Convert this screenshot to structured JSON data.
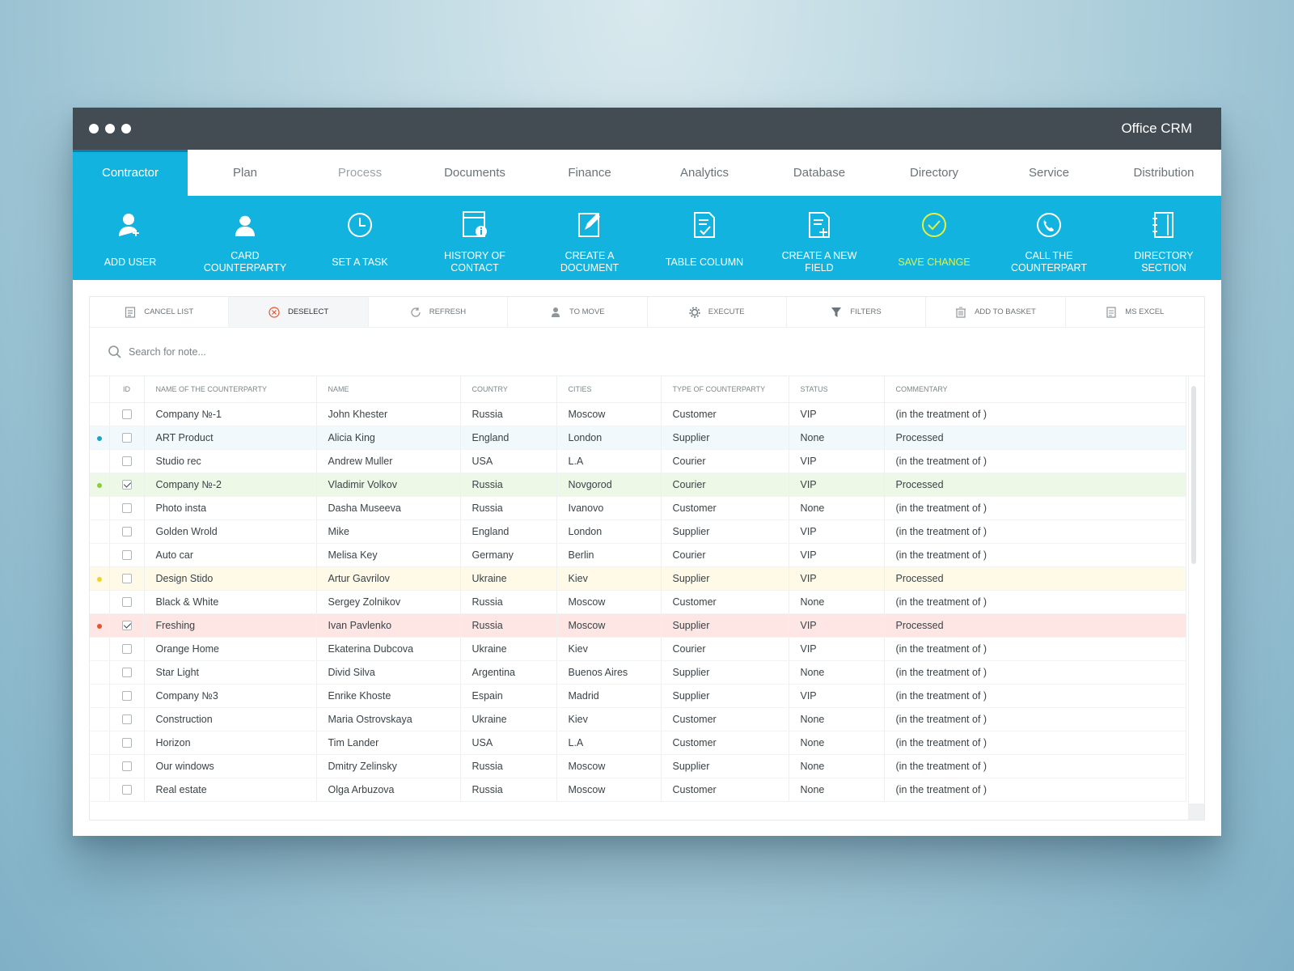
{
  "window": {
    "title": "Office CRM"
  },
  "tabs": [
    {
      "label": "Contractor",
      "state": "active"
    },
    {
      "label": "Plan",
      "state": "normal"
    },
    {
      "label": "Process",
      "state": "muted"
    },
    {
      "label": "Documents",
      "state": "normal"
    },
    {
      "label": "Finance",
      "state": "normal"
    },
    {
      "label": "Analytics",
      "state": "normal"
    },
    {
      "label": "Database",
      "state": "normal"
    },
    {
      "label": "Directory",
      "state": "normal"
    },
    {
      "label": "Service",
      "state": "normal"
    },
    {
      "label": "Distribution",
      "state": "normal"
    }
  ],
  "toolbar": [
    {
      "label": "ADD USER",
      "icon": "add-user-icon"
    },
    {
      "label": "CARD COUNTERPARTY",
      "icon": "card-counterparty-icon"
    },
    {
      "label": "SET A TASK",
      "icon": "clock-icon"
    },
    {
      "label": "HISTORY OF CONTACT",
      "icon": "history-icon"
    },
    {
      "label": "CREATE A DOCUMENT",
      "icon": "edit-document-icon"
    },
    {
      "label": "TABLE COLUMN",
      "icon": "table-column-icon"
    },
    {
      "label": "CREATE A NEW FIELD",
      "icon": "new-field-icon"
    },
    {
      "label": "SAVE CHANGE",
      "icon": "check-circle-icon",
      "accent": "#e5f23a"
    },
    {
      "label": "CALL THE COUNTERPART",
      "icon": "phone-icon"
    },
    {
      "label": "DIRECTORY SECTION",
      "icon": "notebook-icon"
    }
  ],
  "actions": [
    {
      "label": "CANCEL LIST",
      "icon": "list-icon"
    },
    {
      "label": "DESELECT",
      "icon": "close-circle-icon",
      "selected": true
    },
    {
      "label": "REFRESH",
      "icon": "refresh-icon"
    },
    {
      "label": "TO MOVE",
      "icon": "move-user-icon"
    },
    {
      "label": "EXECUTE",
      "icon": "gear-icon"
    },
    {
      "label": "FILTERS",
      "icon": "filter-icon"
    },
    {
      "label": "ADD TO BASKET",
      "icon": "basket-icon"
    },
    {
      "label": "MS EXCEl",
      "icon": "excel-icon"
    }
  ],
  "search": {
    "placeholder": "Search for note..."
  },
  "table": {
    "headers": [
      "ID",
      "NAME OF THE COUNTERPARTY",
      "NAME",
      "COUNTRY",
      "CITIES",
      "TYPE OF COUNTERPARTY",
      "STATUS",
      "COMMENTARY"
    ],
    "rows": [
      {
        "marker": "",
        "checked": false,
        "counterparty": "Company №-1",
        "name": "John Khester",
        "country": "Russia",
        "city": "Moscow",
        "type": "Customer",
        "status": "VIP",
        "commentary": "(in the treatment of )"
      },
      {
        "marker": "blue",
        "checked": false,
        "counterparty": "ART Product",
        "name": "Alicia King",
        "country": "England",
        "city": "London",
        "type": "Supplier",
        "status": "None",
        "commentary": "Processed"
      },
      {
        "marker": "",
        "checked": false,
        "counterparty": "Studio rec",
        "name": "Andrew Muller",
        "country": "USA",
        "city": "L.A",
        "type": "Courier",
        "status": "VIP",
        "commentary": "(in the treatment of )"
      },
      {
        "marker": "green",
        "checked": true,
        "counterparty": "Company №-2",
        "name": "Vladimir Volkov",
        "country": "Russia",
        "city": "Novgorod",
        "type": "Courier",
        "status": "VIP",
        "commentary": "Processed"
      },
      {
        "marker": "",
        "checked": false,
        "counterparty": "Photo insta",
        "name": "Dasha Museeva",
        "country": "Russia",
        "city": "Ivanovo",
        "type": "Customer",
        "status": "None",
        "commentary": "(in the treatment of )"
      },
      {
        "marker": "",
        "checked": false,
        "counterparty": "Golden Wrold",
        "name": "Mike",
        "country": "England",
        "city": "London",
        "type": "Supplier",
        "status": "VIP",
        "commentary": "(in the treatment of )"
      },
      {
        "marker": "",
        "checked": false,
        "counterparty": "Auto car",
        "name": "Melisa Key",
        "country": "Germany",
        "city": "Berlin",
        "type": "Courier",
        "status": "VIP",
        "commentary": "(in the treatment of )"
      },
      {
        "marker": "yellow",
        "checked": false,
        "counterparty": "Design Stido",
        "name": "Artur Gavrilov",
        "country": "Ukraine",
        "city": "Kiev",
        "type": "Supplier",
        "status": "VIP",
        "commentary": "Processed"
      },
      {
        "marker": "",
        "checked": false,
        "counterparty": "Black & White",
        "name": "Sergey Zolnikov",
        "country": "Russia",
        "city": "Moscow",
        "type": "Customer",
        "status": "None",
        "commentary": "(in the treatment of )"
      },
      {
        "marker": "red",
        "checked": true,
        "counterparty": "Freshing",
        "name": "Ivan Pavlenko",
        "country": "Russia",
        "city": "Moscow",
        "type": "Supplier",
        "status": "VIP",
        "commentary": "Processed"
      },
      {
        "marker": "",
        "checked": false,
        "counterparty": "Orange Home",
        "name": "Ekaterina Dubcova",
        "country": "Ukraine",
        "city": "Kiev",
        "type": "Courier",
        "status": "VIP",
        "commentary": "(in the treatment of )"
      },
      {
        "marker": "",
        "checked": false,
        "counterparty": "Star Light",
        "name": "Divid Silva",
        "country": "Argentina",
        "city": "Buenos Aires",
        "type": "Supplier",
        "status": "None",
        "commentary": "(in the treatment of )"
      },
      {
        "marker": "",
        "checked": false,
        "counterparty": "Company №3",
        "name": "Enrike Khoste",
        "country": "Espain",
        "city": "Madrid",
        "type": "Supplier",
        "status": "VIP",
        "commentary": "(in the treatment of )"
      },
      {
        "marker": "",
        "checked": false,
        "counterparty": "Construction",
        "name": "Maria Ostrovskaya",
        "country": "Ukraine",
        "city": "Kiev",
        "type": "Customer",
        "status": "None",
        "commentary": "(in the treatment of )"
      },
      {
        "marker": "",
        "checked": false,
        "counterparty": "Horizon",
        "name": "Tim Lander",
        "country": "USA",
        "city": "L.A",
        "type": "Customer",
        "status": "None",
        "commentary": "(in the treatment of )"
      },
      {
        "marker": "",
        "checked": false,
        "counterparty": "Our windows",
        "name": "Dmitry Zelinsky",
        "country": "Russia",
        "city": "Moscow",
        "type": "Supplier",
        "status": "None",
        "commentary": "(in the treatment of )"
      },
      {
        "marker": "",
        "checked": false,
        "counterparty": "Real estate",
        "name": "Olga Arbuzova",
        "country": "Russia",
        "city": "Moscow",
        "type": "Customer",
        "status": "None",
        "commentary": "(in the treatment of )"
      }
    ]
  },
  "colors": {
    "accent": "#13b3df",
    "titlebar": "#434c52",
    "marker_blue": "#1aa3c9",
    "marker_green": "#8fcd3a",
    "marker_yellow": "#f0d22a",
    "marker_red": "#e4552f"
  }
}
